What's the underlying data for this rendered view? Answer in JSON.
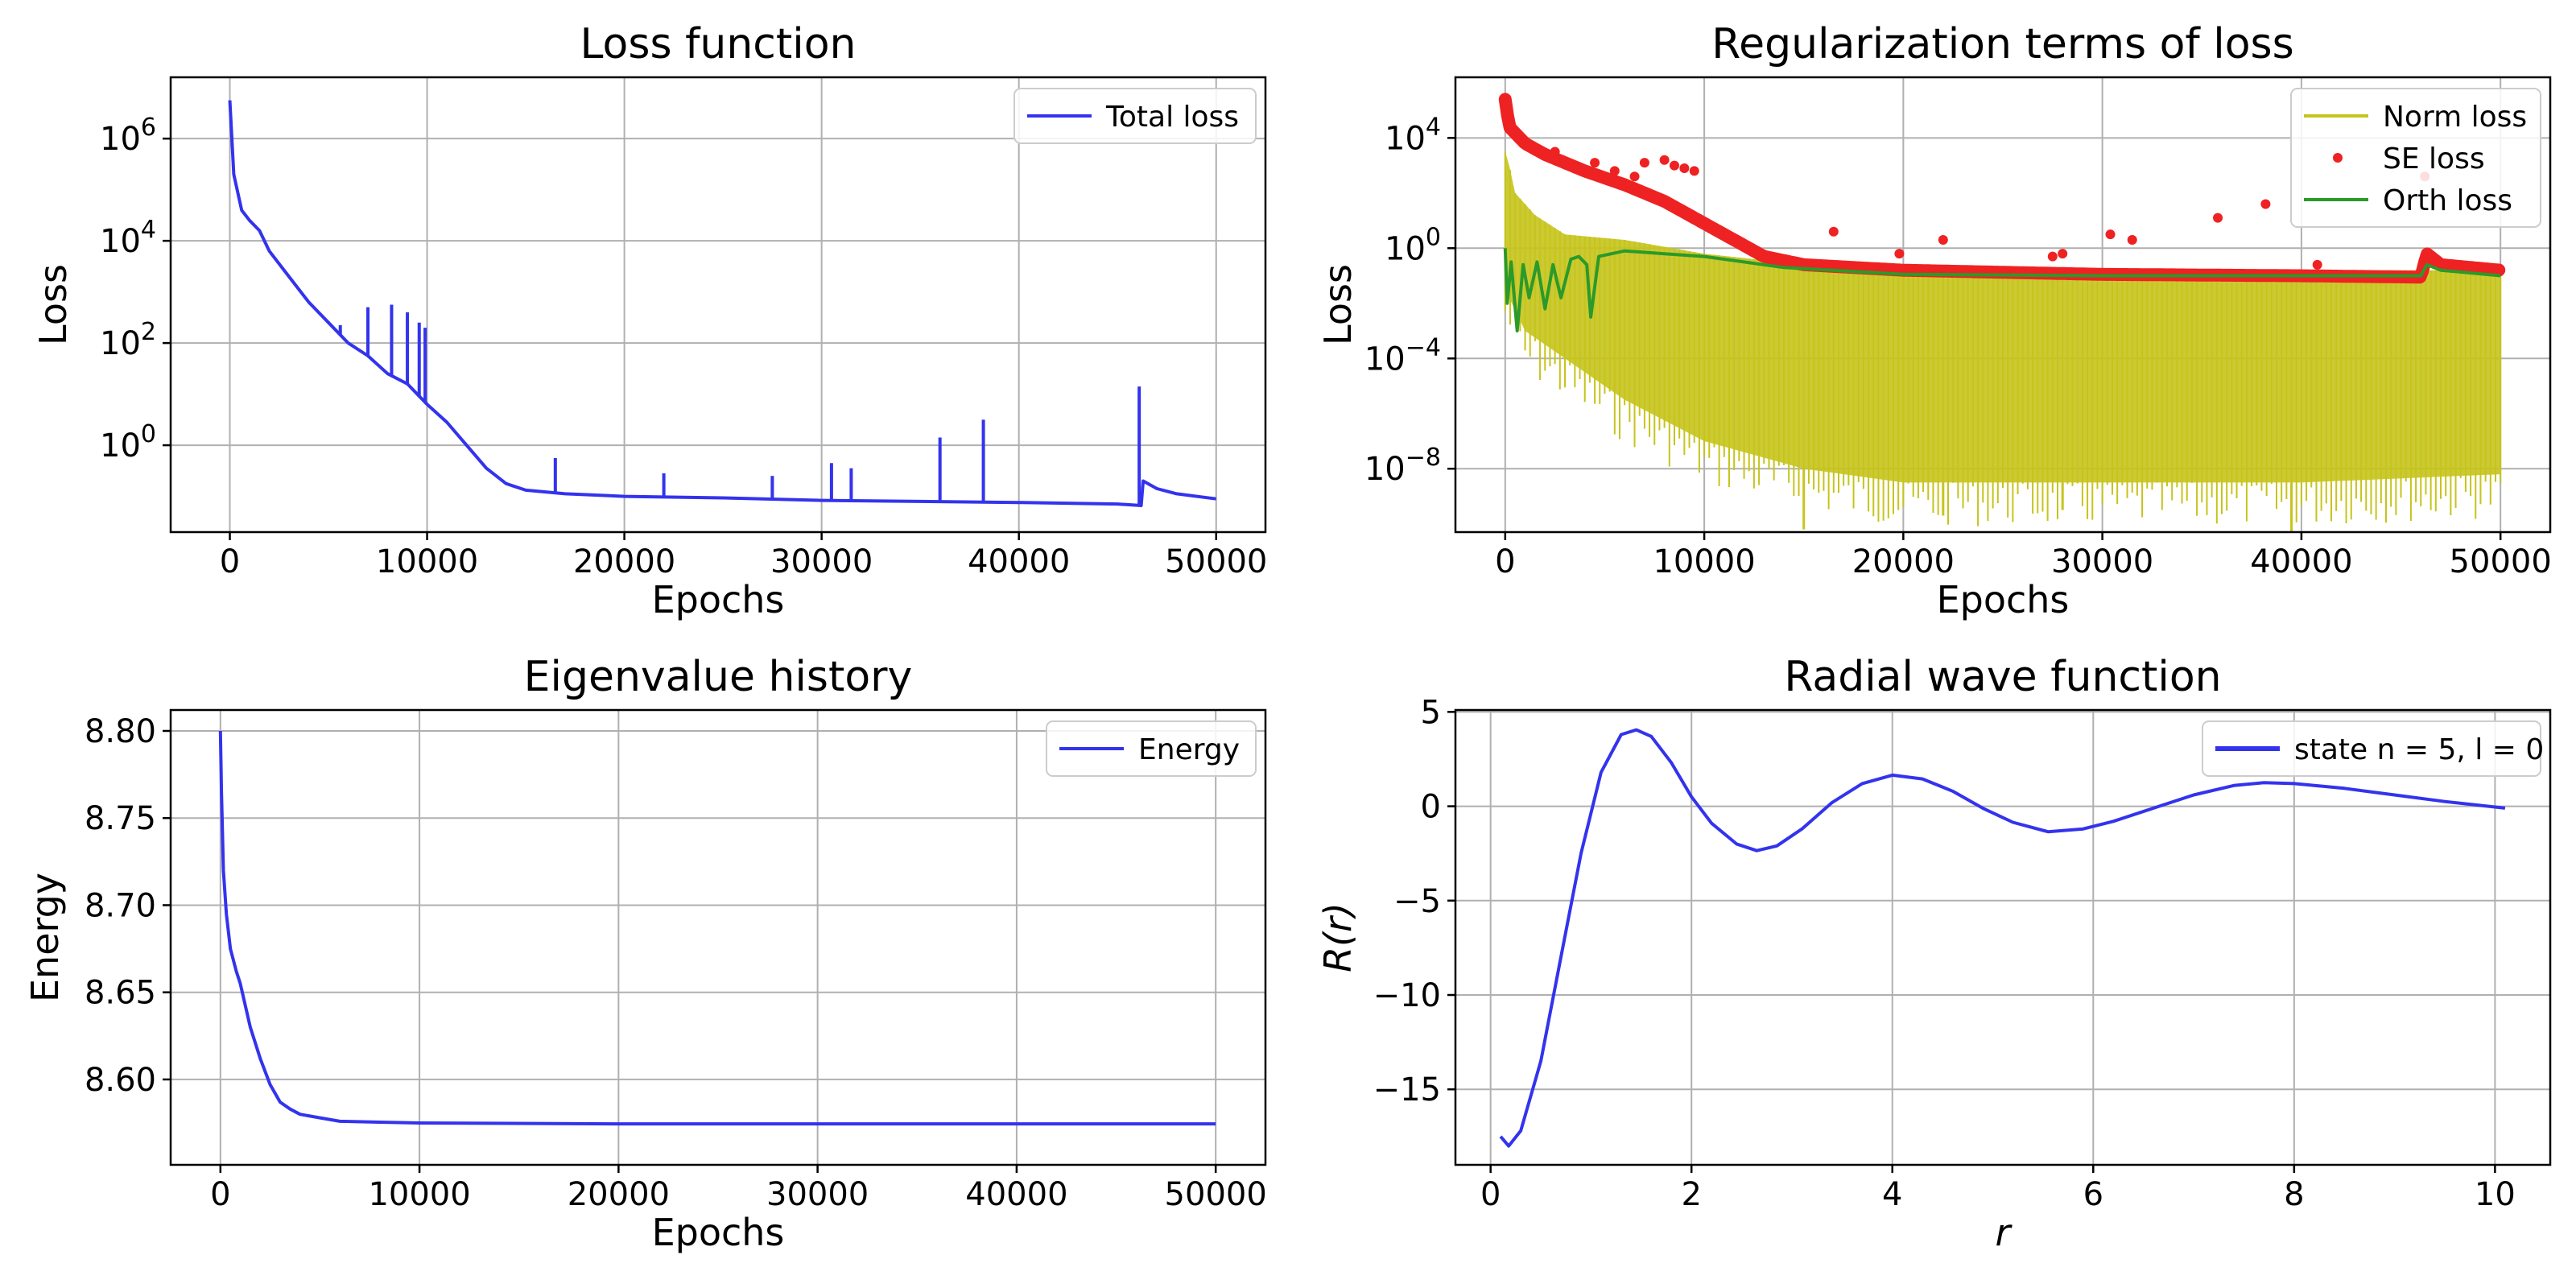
{
  "chart_data": [
    {
      "id": "loss",
      "type": "line",
      "title": "Loss function",
      "xlabel": "Epochs",
      "ylabel": "Loss",
      "yscale": "log",
      "xlim": [
        -3000,
        52500
      ],
      "ylim_log10": [
        -1.7,
        7.2
      ],
      "x_ticks": [
        0,
        10000,
        20000,
        30000,
        40000,
        50000
      ],
      "x_ticklabels": [
        "0",
        "10000",
        "20000",
        "30000",
        "40000",
        "50000"
      ],
      "y_ticks_log10": [
        0,
        2,
        4,
        6
      ],
      "y_ticklabels": [
        "10^0",
        "10^2",
        "10^4",
        "10^6"
      ],
      "grid": true,
      "legend_position": "top-right",
      "series": [
        {
          "name": "Total loss",
          "color": "#3333ee",
          "points_log10": [
            [
              0,
              6.75
            ],
            [
              200,
              5.3
            ],
            [
              600,
              4.6
            ],
            [
              1000,
              4.4
            ],
            [
              1500,
              4.2
            ],
            [
              2000,
              3.8
            ],
            [
              3000,
              3.3
            ],
            [
              4000,
              2.8
            ],
            [
              5000,
              2.4
            ],
            [
              6000,
              2.0
            ],
            [
              7000,
              1.75
            ],
            [
              8000,
              1.4
            ],
            [
              9000,
              1.2
            ],
            [
              10000,
              0.8
            ],
            [
              11000,
              0.45
            ],
            [
              12000,
              0.0
            ],
            [
              13000,
              -0.45
            ],
            [
              14000,
              -0.75
            ],
            [
              15000,
              -0.88
            ],
            [
              17000,
              -0.95
            ],
            [
              20000,
              -1.0
            ],
            [
              25000,
              -1.03
            ],
            [
              30000,
              -1.08
            ],
            [
              35000,
              -1.1
            ],
            [
              40000,
              -1.12
            ],
            [
              45000,
              -1.15
            ],
            [
              46200,
              -1.18
            ],
            [
              46300,
              -0.7
            ],
            [
              47000,
              -0.85
            ],
            [
              48000,
              -0.95
            ],
            [
              50000,
              -1.05
            ]
          ],
          "spikes_log10": [
            [
              5600,
              2.35
            ],
            [
              7000,
              2.7
            ],
            [
              8200,
              2.75
            ],
            [
              9000,
              2.6
            ],
            [
              9600,
              2.4
            ],
            [
              9900,
              2.3
            ],
            [
              16500,
              -0.25
            ],
            [
              22000,
              -0.55
            ],
            [
              27500,
              -0.6
            ],
            [
              30500,
              -0.35
            ],
            [
              31500,
              -0.45
            ],
            [
              36000,
              0.15
            ],
            [
              38200,
              0.5
            ],
            [
              46100,
              1.15
            ]
          ]
        }
      ]
    },
    {
      "id": "reg",
      "type": "line",
      "title": "Regularization terms of loss",
      "xlabel": "Epochs",
      "ylabel": "Loss",
      "yscale": "log",
      "xlim": [
        -2500,
        52500
      ],
      "ylim_log10": [
        -10.3,
        6.2
      ],
      "x_ticks": [
        0,
        10000,
        20000,
        30000,
        40000,
        50000
      ],
      "x_ticklabels": [
        "0",
        "10000",
        "20000",
        "30000",
        "40000",
        "50000"
      ],
      "y_ticks_log10": [
        -8,
        -4,
        0,
        4
      ],
      "y_ticklabels": [
        "10^-8",
        "10^-4",
        "10^0",
        "10^4"
      ],
      "grid": true,
      "legend_position": "top-right",
      "series": [
        {
          "name": "Norm loss",
          "style": "band",
          "color": "#c6c41c",
          "top_log10": [
            [
              0,
              3.5
            ],
            [
              200,
              3.0
            ],
            [
              500,
              2.0
            ],
            [
              1500,
              1.2
            ],
            [
              3000,
              0.5
            ],
            [
              6000,
              0.3
            ],
            [
              10000,
              -0.2
            ],
            [
              15000,
              -0.6
            ],
            [
              20000,
              -0.7
            ],
            [
              30000,
              -0.8
            ],
            [
              40000,
              -0.8
            ],
            [
              50000,
              -0.8
            ]
          ],
          "bottom_log10": [
            [
              0,
              -1.5
            ],
            [
              1000,
              -3.0
            ],
            [
              3000,
              -4.0
            ],
            [
              6000,
              -5.5
            ],
            [
              10000,
              -7.0
            ],
            [
              15000,
              -8.0
            ],
            [
              20000,
              -8.5
            ],
            [
              30000,
              -8.5
            ],
            [
              40000,
              -8.5
            ],
            [
              50000,
              -8.2
            ]
          ],
          "dips_log10": [
            [
              15000,
              -10.2
            ],
            [
              22000,
              -9.7
            ],
            [
              39500,
              -10.3
            ],
            [
              28000,
              -9.5
            ]
          ]
        },
        {
          "name": "SE loss",
          "style": "dots",
          "color": "#ee2222",
          "band_log10": [
            [
              0,
              5.4
            ],
            [
              200,
              4.4
            ],
            [
              1000,
              3.8
            ],
            [
              2000,
              3.4
            ],
            [
              4000,
              2.8
            ],
            [
              6000,
              2.3
            ],
            [
              8000,
              1.7
            ],
            [
              10000,
              0.9
            ],
            [
              11000,
              0.5
            ],
            [
              12000,
              0.1
            ],
            [
              13000,
              -0.3
            ],
            [
              15000,
              -0.6
            ],
            [
              20000,
              -0.8
            ],
            [
              30000,
              -0.95
            ],
            [
              40000,
              -1.0
            ],
            [
              46000,
              -1.05
            ],
            [
              46300,
              -0.2
            ],
            [
              47000,
              -0.6
            ],
            [
              50000,
              -0.8
            ]
          ],
          "outliers_log10": [
            [
              2500,
              3.5
            ],
            [
              4500,
              3.1
            ],
            [
              5500,
              2.8
            ],
            [
              6500,
              2.6
            ],
            [
              7000,
              3.1
            ],
            [
              8000,
              3.2
            ],
            [
              8500,
              3.0
            ],
            [
              9000,
              2.9
            ],
            [
              9500,
              2.8
            ],
            [
              16500,
              0.6
            ],
            [
              19800,
              -0.2
            ],
            [
              22000,
              0.3
            ],
            [
              27500,
              -0.3
            ],
            [
              28000,
              -0.2
            ],
            [
              30400,
              0.5
            ],
            [
              31500,
              0.3
            ],
            [
              35800,
              1.1
            ],
            [
              38200,
              1.6
            ],
            [
              40800,
              -0.6
            ],
            [
              46200,
              2.6
            ]
          ]
        },
        {
          "name": "Orth loss",
          "style": "line",
          "color": "#2a9a2a",
          "points_log10": [
            [
              0,
              0.0
            ],
            [
              100,
              -2.0
            ],
            [
              300,
              -0.5
            ],
            [
              600,
              -3.0
            ],
            [
              900,
              -0.6
            ],
            [
              1200,
              -1.8
            ],
            [
              1600,
              -0.5
            ],
            [
              2000,
              -2.2
            ],
            [
              2400,
              -0.6
            ],
            [
              2800,
              -1.8
            ],
            [
              3300,
              -0.4
            ],
            [
              3700,
              -0.3
            ],
            [
              4100,
              -0.6
            ],
            [
              4300,
              -2.5
            ],
            [
              4700,
              -0.3
            ],
            [
              6000,
              -0.1
            ],
            [
              8000,
              -0.2
            ],
            [
              10000,
              -0.3
            ],
            [
              12000,
              -0.5
            ],
            [
              14000,
              -0.7
            ],
            [
              20000,
              -0.95
            ],
            [
              30000,
              -1.0
            ],
            [
              40000,
              -1.0
            ],
            [
              46000,
              -1.0
            ],
            [
              46300,
              -0.6
            ],
            [
              47000,
              -0.8
            ],
            [
              50000,
              -1.0
            ]
          ]
        }
      ]
    },
    {
      "id": "eig",
      "type": "line",
      "title": "Eigenvalue history",
      "xlabel": "Epochs",
      "ylabel": "Energy",
      "yscale": "linear",
      "xlim": [
        -2500,
        52500
      ],
      "ylim": [
        8.551,
        8.812
      ],
      "x_ticks": [
        0,
        10000,
        20000,
        30000,
        40000,
        50000
      ],
      "x_ticklabels": [
        "0",
        "10000",
        "20000",
        "30000",
        "40000",
        "50000"
      ],
      "y_ticks": [
        8.6,
        8.65,
        8.7,
        8.75,
        8.8
      ],
      "y_ticklabels": [
        "8.60",
        "8.65",
        "8.70",
        "8.75",
        "8.80"
      ],
      "grid": true,
      "legend_position": "top-right",
      "series": [
        {
          "name": "Energy",
          "color": "#3333ee",
          "points": [
            [
              0,
              8.8
            ],
            [
              50,
              8.765
            ],
            [
              150,
              8.72
            ],
            [
              300,
              8.695
            ],
            [
              500,
              8.675
            ],
            [
              800,
              8.662
            ],
            [
              1000,
              8.655
            ],
            [
              1500,
              8.63
            ],
            [
              2000,
              8.612
            ],
            [
              2500,
              8.597
            ],
            [
              3000,
              8.587
            ],
            [
              3500,
              8.583
            ],
            [
              4000,
              8.58
            ],
            [
              5000,
              8.578
            ],
            [
              6000,
              8.576
            ],
            [
              8000,
              8.5755
            ],
            [
              10000,
              8.575
            ],
            [
              20000,
              8.5745
            ],
            [
              30000,
              8.5745
            ],
            [
              40000,
              8.5745
            ],
            [
              50000,
              8.5745
            ]
          ]
        }
      ]
    },
    {
      "id": "wave",
      "type": "line",
      "title": "Radial wave function",
      "xlabel": "r",
      "ylabel": "R(r)",
      "yscale": "linear",
      "xlim": [
        -0.35,
        10.55
      ],
      "ylim": [
        -19.0,
        5.1
      ],
      "x_ticks": [
        0,
        2,
        4,
        6,
        8,
        10
      ],
      "x_ticklabels": [
        "0",
        "2",
        "4",
        "6",
        "8",
        "10"
      ],
      "y_ticks": [
        -15,
        -10,
        -5,
        0,
        5
      ],
      "y_ticklabels": [
        "−15",
        "−10",
        "−5",
        "0",
        "5"
      ],
      "grid": true,
      "legend_position": "top-right",
      "series": [
        {
          "name": "state n = 5, l = 0",
          "color": "#3333ee",
          "points": [
            [
              0.1,
              -17.5
            ],
            [
              0.18,
              -18.0
            ],
            [
              0.3,
              -17.2
            ],
            [
              0.5,
              -13.5
            ],
            [
              0.7,
              -8.0
            ],
            [
              0.9,
              -2.5
            ],
            [
              1.1,
              1.8
            ],
            [
              1.3,
              3.8
            ],
            [
              1.45,
              4.05
            ],
            [
              1.6,
              3.7
            ],
            [
              1.8,
              2.3
            ],
            [
              2.0,
              0.5
            ],
            [
              2.2,
              -0.9
            ],
            [
              2.45,
              -2.0
            ],
            [
              2.65,
              -2.35
            ],
            [
              2.85,
              -2.1
            ],
            [
              3.1,
              -1.2
            ],
            [
              3.4,
              0.2
            ],
            [
              3.7,
              1.2
            ],
            [
              4.0,
              1.65
            ],
            [
              4.3,
              1.45
            ],
            [
              4.6,
              0.8
            ],
            [
              4.9,
              -0.1
            ],
            [
              5.2,
              -0.85
            ],
            [
              5.55,
              -1.35
            ],
            [
              5.9,
              -1.2
            ],
            [
              6.2,
              -0.8
            ],
            [
              6.6,
              -0.1
            ],
            [
              7.0,
              0.6
            ],
            [
              7.4,
              1.1
            ],
            [
              7.7,
              1.25
            ],
            [
              8.0,
              1.2
            ],
            [
              8.5,
              0.95
            ],
            [
              9.0,
              0.6
            ],
            [
              9.5,
              0.25
            ],
            [
              10.1,
              -0.1
            ]
          ]
        }
      ]
    }
  ]
}
